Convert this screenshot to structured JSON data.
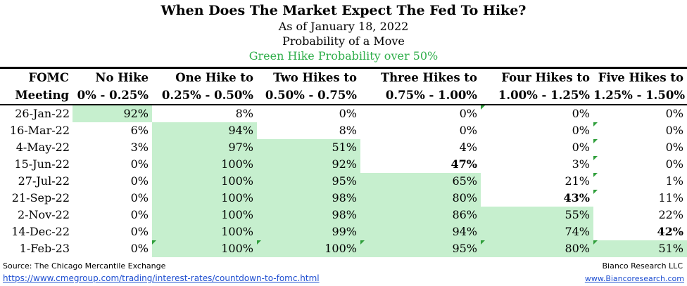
{
  "header": {
    "title": "When Does The Market Expect The Fed To Hike?",
    "subtitle": "As of January 18, 2022",
    "subtitle2": "Probability of a Move",
    "note": "Green Hike Probability over 50%"
  },
  "colors": {
    "highlight": "#c6efce",
    "note_green": "#2fae4a",
    "link_blue": "#1f4fd1"
  },
  "chart_data": {
    "type": "table",
    "columns": [
      {
        "top": "FOMC",
        "bottom": "Meeting"
      },
      {
        "top": "No Hike",
        "bottom": "0% - 0.25%"
      },
      {
        "top": "One Hike to",
        "bottom": "0.25% - 0.50%"
      },
      {
        "top": "Two Hikes to",
        "bottom": "0.50% - 0.75%"
      },
      {
        "top": "Three Hikes to",
        "bottom": "0.75% - 1.00%"
      },
      {
        "top": "Four Hikes to",
        "bottom": "1.00% - 1.25%"
      },
      {
        "top": "Five Hikes to",
        "bottom": "1.25% - 1.50%"
      }
    ],
    "rows": [
      {
        "meeting": "26-Jan-22",
        "values": [
          "92%",
          "8%",
          "0%",
          "0%",
          "0%",
          "0%"
        ],
        "highlight": [
          0
        ],
        "bold": [],
        "mark": [
          4
        ]
      },
      {
        "meeting": "16-Mar-22",
        "values": [
          "6%",
          "94%",
          "8%",
          "0%",
          "0%",
          "0%"
        ],
        "highlight": [
          1
        ],
        "bold": [],
        "mark": [
          5
        ]
      },
      {
        "meeting": "4-May-22",
        "values": [
          "3%",
          "97%",
          "51%",
          "4%",
          "0%",
          "0%"
        ],
        "highlight": [
          1,
          2
        ],
        "bold": [],
        "mark": [
          5
        ]
      },
      {
        "meeting": "15-Jun-22",
        "values": [
          "0%",
          "100%",
          "92%",
          "47%",
          "3%",
          "0%"
        ],
        "highlight": [
          1,
          2
        ],
        "bold": [
          3
        ],
        "mark": [
          5
        ]
      },
      {
        "meeting": "27-Jul-22",
        "values": [
          "0%",
          "100%",
          "95%",
          "65%",
          "21%",
          "1%"
        ],
        "highlight": [
          1,
          2,
          3
        ],
        "bold": [],
        "mark": [
          5
        ]
      },
      {
        "meeting": "21-Sep-22",
        "values": [
          "0%",
          "100%",
          "98%",
          "80%",
          "43%",
          "11%"
        ],
        "highlight": [
          1,
          2,
          3
        ],
        "bold": [
          4
        ],
        "mark": [
          5
        ]
      },
      {
        "meeting": "2-Nov-22",
        "values": [
          "0%",
          "100%",
          "98%",
          "86%",
          "55%",
          "22%"
        ],
        "highlight": [
          1,
          2,
          3,
          4
        ],
        "bold": [],
        "mark": []
      },
      {
        "meeting": "14-Dec-22",
        "values": [
          "0%",
          "100%",
          "99%",
          "94%",
          "74%",
          "42%"
        ],
        "highlight": [
          1,
          2,
          3,
          4
        ],
        "bold": [
          5
        ],
        "mark": []
      },
      {
        "meeting": "1-Feb-23",
        "values": [
          "0%",
          "100%",
          "100%",
          "95%",
          "80%",
          "51%"
        ],
        "highlight": [
          1,
          2,
          3,
          4,
          5
        ],
        "bold": [],
        "mark": [
          1,
          2,
          3,
          4,
          5
        ]
      }
    ]
  },
  "footer": {
    "source": "Source: The Chicago Mercantile Exchange",
    "url": "https://www.cmegroup.com/trading/interest-rates/countdown-to-fomc.html",
    "firm": "Bianco Research LLC",
    "website": "www.Biancoresearch.com"
  }
}
